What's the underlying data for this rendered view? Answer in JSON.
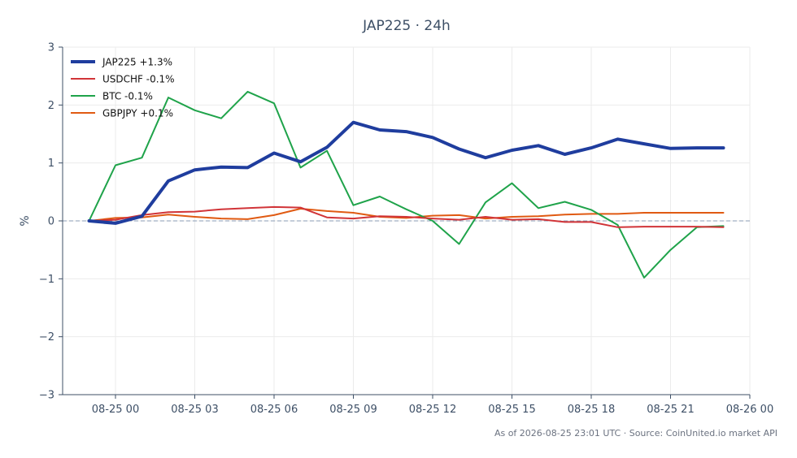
{
  "chart_data": {
    "type": "line",
    "title": "JAP225 · 24h",
    "ylabel": "%",
    "xlabel": "",
    "ylim": [
      -3,
      3
    ],
    "y_ticks": [
      3,
      2,
      1,
      0,
      -1,
      -2,
      -3
    ],
    "y_tick_labels": [
      "3",
      "2",
      "1",
      "0",
      "−1",
      "−2",
      "−3"
    ],
    "x_ticks": [
      "08-25 00",
      "08-25 03",
      "08-25 06",
      "08-25 09",
      "08-25 12",
      "08-25 15",
      "08-25 18",
      "08-25 21",
      "08-26 00"
    ],
    "x_hours": [
      -1,
      0,
      1,
      2,
      3,
      4,
      5,
      6,
      7,
      8,
      9,
      10,
      11,
      12,
      13,
      14,
      15,
      16,
      17,
      18,
      19,
      20,
      21,
      22,
      23
    ],
    "grid": true,
    "zero_line": true,
    "legend_position": "top-left",
    "series": [
      {
        "name": "JAP225 +1.3%",
        "color": "#1f3d9e",
        "values": [
          0.0,
          -0.04,
          0.08,
          0.69,
          0.88,
          0.93,
          0.92,
          1.17,
          1.02,
          1.27,
          1.7,
          1.57,
          1.54,
          1.44,
          1.24,
          1.09,
          1.22,
          1.3,
          1.15,
          1.26,
          1.41,
          1.33,
          1.25,
          1.26,
          1.26
        ]
      },
      {
        "name": "USDCHF -0.1%",
        "color": "#d13438",
        "values": [
          0.0,
          0.02,
          0.1,
          0.15,
          0.16,
          0.2,
          0.22,
          0.24,
          0.23,
          0.06,
          0.04,
          0.08,
          0.07,
          0.04,
          0.02,
          0.07,
          0.02,
          0.03,
          -0.02,
          -0.02,
          -0.11,
          -0.1,
          -0.1,
          -0.1,
          -0.11
        ]
      },
      {
        "name": "BTC -0.1%",
        "color": "#1fa34a",
        "values": [
          0.0,
          0.96,
          1.09,
          2.13,
          1.91,
          1.77,
          2.23,
          2.03,
          0.92,
          1.21,
          0.27,
          0.42,
          0.2,
          0.0,
          -0.4,
          0.32,
          0.65,
          0.22,
          0.33,
          0.19,
          -0.07,
          -0.98,
          -0.5,
          -0.11,
          -0.09
        ]
      },
      {
        "name": "GBPJPY +0.1%",
        "color": "#e05a12",
        "values": [
          0.0,
          0.05,
          0.06,
          0.11,
          0.07,
          0.04,
          0.03,
          0.1,
          0.21,
          0.17,
          0.14,
          0.07,
          0.05,
          0.09,
          0.1,
          0.04,
          0.07,
          0.08,
          0.11,
          0.12,
          0.12,
          0.14,
          0.14,
          0.14,
          0.14
        ]
      }
    ],
    "footer": "As of 2026-08-25 23:01 UTC · Source: CoinUnited.io market API"
  },
  "colors": {
    "axis": "#3d4f66",
    "grid": "#ebebeb",
    "zero_line": "#8a9bb5",
    "background": "#ffffff"
  }
}
